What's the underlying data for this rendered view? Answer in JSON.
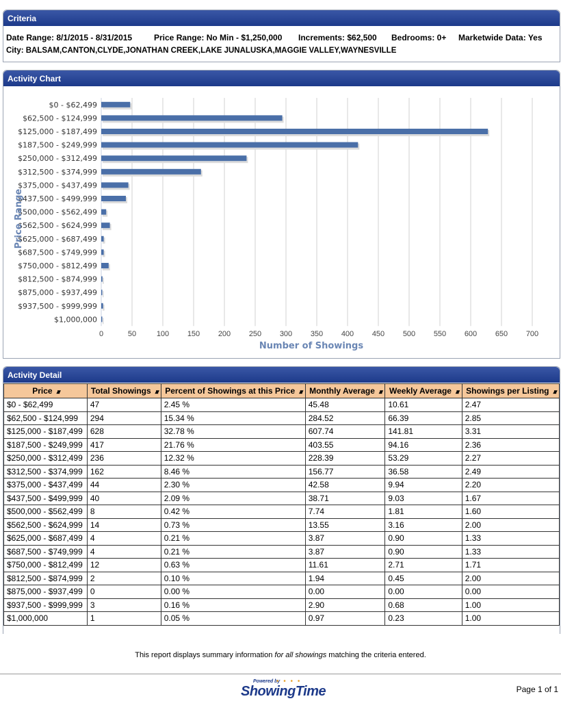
{
  "criteria": {
    "header": "Criteria",
    "date_range": "Date Range: 8/1/2015 - 8/31/2015",
    "price_range": "Price Range: No Min - $1,250,000",
    "increments": "Increments: $62,500",
    "bedrooms": "Bedrooms: 0+",
    "marketwide": "Marketwide Data: Yes",
    "city": "City:  BALSAM,CANTON,CLYDE,JONATHAN CREEK,LAKE JUNALUSKA,MAGGIE VALLEY,WAYNESVILLE"
  },
  "activity_chart": {
    "header": "Activity Chart"
  },
  "chart_data": {
    "type": "bar",
    "orientation": "horizontal",
    "categories": [
      "$0 - $62,499",
      "$62,500 - $124,999",
      "$125,000 - $187,499",
      "$187,500 - $249,999",
      "$250,000 - $312,499",
      "$312,500 - $374,999",
      "$375,000 - $437,499",
      "$437,500 - $499,999",
      "$500,000 - $562,499",
      "$562,500 - $624,999",
      "$625,000 - $687,499",
      "$687,500 - $749,999",
      "$750,000 - $812,499",
      "$812,500 - $874,999",
      "$875,000 - $937,499",
      "$937,500 - $999,999",
      "$1,000,000"
    ],
    "values": [
      47,
      294,
      628,
      417,
      236,
      162,
      44,
      40,
      8,
      14,
      4,
      4,
      12,
      2,
      0,
      3,
      1
    ],
    "xlabel": "Number of Showings",
    "ylabel": "Price Range",
    "xlim": [
      0,
      700
    ],
    "xticks": [
      0,
      50,
      100,
      150,
      200,
      250,
      300,
      350,
      400,
      450,
      500,
      550,
      600,
      650,
      700
    ],
    "grid": true,
    "bar_color": "#4a6fa8"
  },
  "activity_detail": {
    "header": "Activity Detail",
    "columns": [
      "Price",
      "Total Showings",
      "Percent of Showings at this Price",
      "Monthly Average",
      "Weekly Average",
      "Showings per Listing"
    ],
    "rows": [
      [
        "$0 - $62,499",
        "47",
        "2.45 %",
        "45.48",
        "10.61",
        "2.47"
      ],
      [
        "$62,500 - $124,999",
        "294",
        "15.34 %",
        "284.52",
        "66.39",
        "2.85"
      ],
      [
        "$125,000 - $187,499",
        "628",
        "32.78 %",
        "607.74",
        "141.81",
        "3.31"
      ],
      [
        "$187,500 - $249,999",
        "417",
        "21.76 %",
        "403.55",
        "94.16",
        "2.36"
      ],
      [
        "$250,000 - $312,499",
        "236",
        "12.32 %",
        "228.39",
        "53.29",
        "2.27"
      ],
      [
        "$312,500 - $374,999",
        "162",
        "8.46 %",
        "156.77",
        "36.58",
        "2.49"
      ],
      [
        "$375,000 - $437,499",
        "44",
        "2.30 %",
        "42.58",
        "9.94",
        "2.20"
      ],
      [
        "$437,500 - $499,999",
        "40",
        "2.09 %",
        "38.71",
        "9.03",
        "1.67"
      ],
      [
        "$500,000 - $562,499",
        "8",
        "0.42 %",
        "7.74",
        "1.81",
        "1.60"
      ],
      [
        "$562,500 - $624,999",
        "14",
        "0.73 %",
        "13.55",
        "3.16",
        "2.00"
      ],
      [
        "$625,000 - $687,499",
        "4",
        "0.21 %",
        "3.87",
        "0.90",
        "1.33"
      ],
      [
        "$687,500 - $749,999",
        "4",
        "0.21 %",
        "3.87",
        "0.90",
        "1.33"
      ],
      [
        "$750,000 - $812,499",
        "12",
        "0.63 %",
        "11.61",
        "2.71",
        "1.71"
      ],
      [
        "$812,500 - $874,999",
        "2",
        "0.10 %",
        "1.94",
        "0.45",
        "2.00"
      ],
      [
        "$875,000 - $937,499",
        "0",
        "0.00 %",
        "0.00",
        "0.00",
        "0.00"
      ],
      [
        "$937,500 - $999,999",
        "3",
        "0.16 %",
        "2.90",
        "0.68",
        "1.00"
      ],
      [
        "$1,000,000",
        "1",
        "0.05 %",
        "0.97",
        "0.23",
        "1.00"
      ]
    ]
  },
  "footer": {
    "note_before": "This report displays summary information ",
    "note_em": "for all showings",
    "note_after": " matching the criteria entered.",
    "logo_small": "Powered by",
    "logo": "ShowingTime",
    "page": "Page 1 of 1"
  }
}
